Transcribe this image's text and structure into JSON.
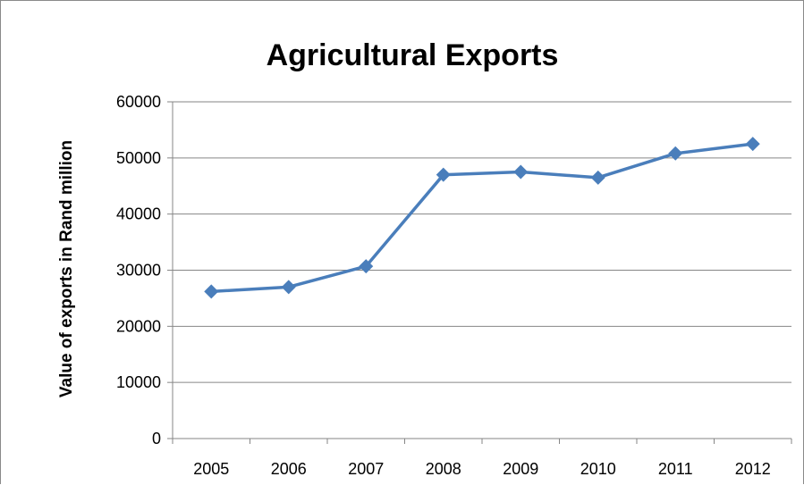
{
  "chart_data": {
    "type": "line",
    "title": "Agricultural Exports",
    "xlabel": "",
    "ylabel": "Value of exports in Rand million",
    "categories": [
      "2005",
      "2006",
      "2007",
      "2008",
      "2009",
      "2010",
      "2011",
      "2012"
    ],
    "series": [
      {
        "values": [
          26200,
          27000,
          30700,
          47000,
          47500,
          46500,
          50800,
          52500
        ]
      }
    ],
    "ylim": [
      0,
      60000
    ],
    "yticks": [
      "0",
      "10000",
      "20000",
      "30000",
      "40000",
      "50000",
      "60000"
    ],
    "grid": true,
    "legend": "none",
    "colors": {
      "series": "#4a7ebb",
      "grid": "#868686",
      "axis": "#868686"
    }
  }
}
